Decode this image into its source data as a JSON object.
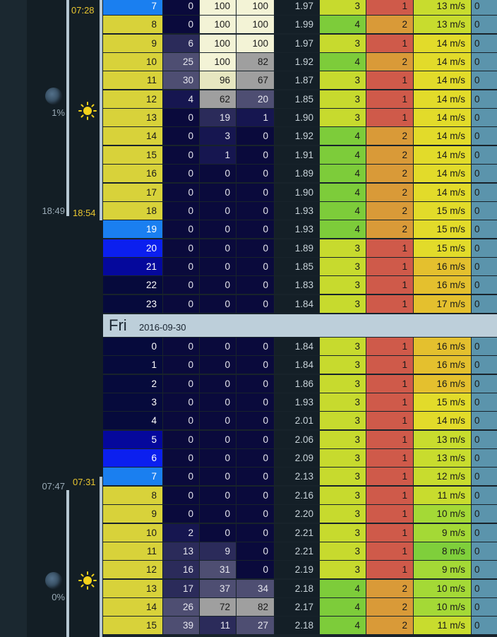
{
  "day_header": {
    "name": "Fri",
    "date": "2016-09-30"
  },
  "astro": [
    {
      "sunrise": "07:28",
      "sunset": "18:54",
      "moonrise": "",
      "moonset": "18:49",
      "moon_illum": "1%"
    },
    {
      "sunrise": "07:31",
      "sunset": "",
      "moonrise": "07:47",
      "moonset": "",
      "moon_illum": "0%"
    }
  ],
  "colors": {
    "cloud": [
      "#0a0a3c",
      "#161650",
      "#2b2b5a",
      "#4e4e72",
      "#9f9f9f",
      "#e6e6c0",
      "#f3f3d6"
    ],
    "swell": [
      "#7dcc3a",
      "#c7da2e"
    ],
    "count": {
      "1": "#cf5a4a",
      "2": "#d99a38"
    },
    "wind": [
      "#7fcf3b",
      "#a4d936",
      "#c8dc2e",
      "#e2db2a",
      "#e4c02e"
    ],
    "daylight": "#d8d23a",
    "twilight": "#1a7ff0",
    "dusk": "#0b1fef",
    "night_blue": "#05089c",
    "night": "#060a3c"
  },
  "rows": [
    {
      "hour": "7",
      "p1": "0",
      "p2": "100",
      "p3": "100",
      "wave": "1.97",
      "swell": "3",
      "count": "1",
      "wind": "13 m/s",
      "last": "0"
    },
    {
      "hour": "8",
      "p1": "0",
      "p2": "100",
      "p3": "100",
      "wave": "1.99",
      "swell": "4",
      "count": "2",
      "wind": "13 m/s",
      "last": "0"
    },
    {
      "hour": "9",
      "p1": "6",
      "p2": "100",
      "p3": "100",
      "wave": "1.97",
      "swell": "3",
      "count": "1",
      "wind": "14 m/s",
      "last": "0"
    },
    {
      "hour": "10",
      "p1": "25",
      "p2": "100",
      "p3": "82",
      "wave": "1.92",
      "swell": "4",
      "count": "2",
      "wind": "14 m/s",
      "last": "0"
    },
    {
      "hour": "11",
      "p1": "30",
      "p2": "96",
      "p3": "67",
      "wave": "1.87",
      "swell": "3",
      "count": "1",
      "wind": "14 m/s",
      "last": "0"
    },
    {
      "hour": "12",
      "p1": "4",
      "p2": "62",
      "p3": "20",
      "wave": "1.85",
      "swell": "3",
      "count": "1",
      "wind": "14 m/s",
      "last": "0"
    },
    {
      "hour": "13",
      "p1": "0",
      "p2": "19",
      "p3": "1",
      "wave": "1.90",
      "swell": "3",
      "count": "1",
      "wind": "14 m/s",
      "last": "0"
    },
    {
      "hour": "14",
      "p1": "0",
      "p2": "3",
      "p3": "0",
      "wave": "1.92",
      "swell": "4",
      "count": "2",
      "wind": "14 m/s",
      "last": "0"
    },
    {
      "hour": "15",
      "p1": "0",
      "p2": "1",
      "p3": "0",
      "wave": "1.91",
      "swell": "4",
      "count": "2",
      "wind": "14 m/s",
      "last": "0"
    },
    {
      "hour": "16",
      "p1": "0",
      "p2": "0",
      "p3": "0",
      "wave": "1.89",
      "swell": "4",
      "count": "2",
      "wind": "14 m/s",
      "last": "0"
    },
    {
      "hour": "17",
      "p1": "0",
      "p2": "0",
      "p3": "0",
      "wave": "1.90",
      "swell": "4",
      "count": "2",
      "wind": "14 m/s",
      "last": "0"
    },
    {
      "hour": "18",
      "p1": "0",
      "p2": "0",
      "p3": "0",
      "wave": "1.93",
      "swell": "4",
      "count": "2",
      "wind": "15 m/s",
      "last": "0"
    },
    {
      "hour": "19",
      "p1": "0",
      "p2": "0",
      "p3": "0",
      "wave": "1.93",
      "swell": "4",
      "count": "2",
      "wind": "15 m/s",
      "last": "0"
    },
    {
      "hour": "20",
      "p1": "0",
      "p2": "0",
      "p3": "0",
      "wave": "1.89",
      "swell": "3",
      "count": "1",
      "wind": "15 m/s",
      "last": "0"
    },
    {
      "hour": "21",
      "p1": "0",
      "p2": "0",
      "p3": "0",
      "wave": "1.85",
      "swell": "3",
      "count": "1",
      "wind": "16 m/s",
      "last": "0"
    },
    {
      "hour": "22",
      "p1": "0",
      "p2": "0",
      "p3": "0",
      "wave": "1.83",
      "swell": "3",
      "count": "1",
      "wind": "16 m/s",
      "last": "0"
    },
    {
      "hour": "23",
      "p1": "0",
      "p2": "0",
      "p3": "0",
      "wave": "1.84",
      "swell": "3",
      "count": "1",
      "wind": "17 m/s",
      "last": "0"
    },
    {
      "hour": "0",
      "p1": "0",
      "p2": "0",
      "p3": "0",
      "wave": "1.84",
      "swell": "3",
      "count": "1",
      "wind": "16 m/s",
      "last": "0"
    },
    {
      "hour": "1",
      "p1": "0",
      "p2": "0",
      "p3": "0",
      "wave": "1.84",
      "swell": "3",
      "count": "1",
      "wind": "16 m/s",
      "last": "0"
    },
    {
      "hour": "2",
      "p1": "0",
      "p2": "0",
      "p3": "0",
      "wave": "1.86",
      "swell": "3",
      "count": "1",
      "wind": "16 m/s",
      "last": "0"
    },
    {
      "hour": "3",
      "p1": "0",
      "p2": "0",
      "p3": "0",
      "wave": "1.93",
      "swell": "3",
      "count": "1",
      "wind": "15 m/s",
      "last": "0"
    },
    {
      "hour": "4",
      "p1": "0",
      "p2": "0",
      "p3": "0",
      "wave": "2.01",
      "swell": "3",
      "count": "1",
      "wind": "14 m/s",
      "last": "0"
    },
    {
      "hour": "5",
      "p1": "0",
      "p2": "0",
      "p3": "0",
      "wave": "2.06",
      "swell": "3",
      "count": "1",
      "wind": "13 m/s",
      "last": "0"
    },
    {
      "hour": "6",
      "p1": "0",
      "p2": "0",
      "p3": "0",
      "wave": "2.09",
      "swell": "3",
      "count": "1",
      "wind": "13 m/s",
      "last": "0"
    },
    {
      "hour": "7",
      "p1": "0",
      "p2": "0",
      "p3": "0",
      "wave": "2.13",
      "swell": "3",
      "count": "1",
      "wind": "12 m/s",
      "last": "0"
    },
    {
      "hour": "8",
      "p1": "0",
      "p2": "0",
      "p3": "0",
      "wave": "2.16",
      "swell": "3",
      "count": "1",
      "wind": "11 m/s",
      "last": "0"
    },
    {
      "hour": "9",
      "p1": "0",
      "p2": "0",
      "p3": "0",
      "wave": "2.20",
      "swell": "3",
      "count": "1",
      "wind": "10 m/s",
      "last": "0"
    },
    {
      "hour": "10",
      "p1": "2",
      "p2": "0",
      "p3": "0",
      "wave": "2.21",
      "swell": "3",
      "count": "1",
      "wind": "9 m/s",
      "last": "0"
    },
    {
      "hour": "11",
      "p1": "13",
      "p2": "9",
      "p3": "0",
      "wave": "2.21",
      "swell": "3",
      "count": "1",
      "wind": "8 m/s",
      "last": "0"
    },
    {
      "hour": "12",
      "p1": "16",
      "p2": "31",
      "p3": "0",
      "wave": "2.19",
      "swell": "3",
      "count": "1",
      "wind": "9 m/s",
      "last": "0"
    },
    {
      "hour": "13",
      "p1": "17",
      "p2": "37",
      "p3": "34",
      "wave": "2.18",
      "swell": "4",
      "count": "2",
      "wind": "10 m/s",
      "last": "0"
    },
    {
      "hour": "14",
      "p1": "26",
      "p2": "72",
      "p3": "82",
      "wave": "2.17",
      "swell": "4",
      "count": "2",
      "wind": "10 m/s",
      "last": "0"
    },
    {
      "hour": "15",
      "p1": "39",
      "p2": "11",
      "p3": "27",
      "wave": "2.18",
      "swell": "4",
      "count": "2",
      "wind": "11 m/s",
      "last": "0"
    }
  ]
}
